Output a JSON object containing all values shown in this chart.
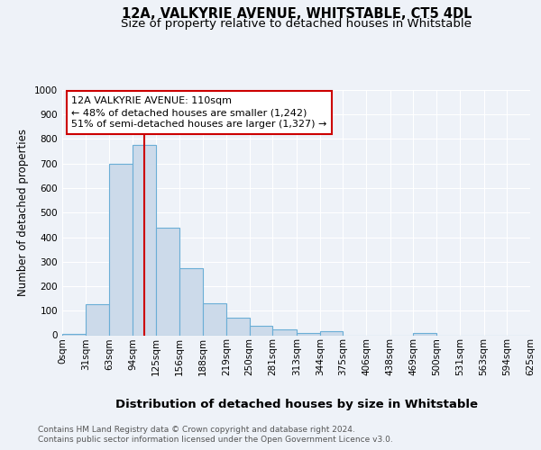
{
  "title1": "12A, VALKYRIE AVENUE, WHITSTABLE, CT5 4DL",
  "title2": "Size of property relative to detached houses in Whitstable",
  "xlabel": "Distribution of detached houses by size in Whitstable",
  "ylabel": "Number of detached properties",
  "footnote1": "Contains HM Land Registry data © Crown copyright and database right 2024.",
  "footnote2": "Contains public sector information licensed under the Open Government Licence v3.0.",
  "bin_edges": [
    0,
    31,
    63,
    94,
    125,
    156,
    188,
    219,
    250,
    281,
    313,
    344,
    375,
    406,
    438,
    469,
    500,
    531,
    563,
    594,
    625
  ],
  "bar_heights": [
    5,
    125,
    700,
    775,
    440,
    275,
    130,
    70,
    40,
    25,
    10,
    15,
    0,
    0,
    0,
    8,
    0,
    0,
    0,
    0
  ],
  "bar_color": "#ccdaea",
  "bar_edge_color": "#6baed6",
  "bar_edge_width": 0.8,
  "red_line_x": 110,
  "red_line_color": "#cc0000",
  "ylim": [
    0,
    1000
  ],
  "yticks": [
    0,
    100,
    200,
    300,
    400,
    500,
    600,
    700,
    800,
    900,
    1000
  ],
  "annotation_title": "12A VALKYRIE AVENUE: 110sqm",
  "annotation_line1": "← 48% of detached houses are smaller (1,242)",
  "annotation_line2": "51% of semi-detached houses are larger (1,327) →",
  "annotation_box_facecolor": "#ffffff",
  "annotation_box_edgecolor": "#cc0000",
  "bg_color": "#eef2f8",
  "plot_bg_color": "#eef2f8",
  "grid_color": "#ffffff",
  "title1_fontsize": 10.5,
  "title2_fontsize": 9.5,
  "tick_fontsize": 7.5,
  "annotation_fontsize": 8,
  "xlabel_fontsize": 9.5,
  "ylabel_fontsize": 8.5,
  "footnote_fontsize": 6.5
}
